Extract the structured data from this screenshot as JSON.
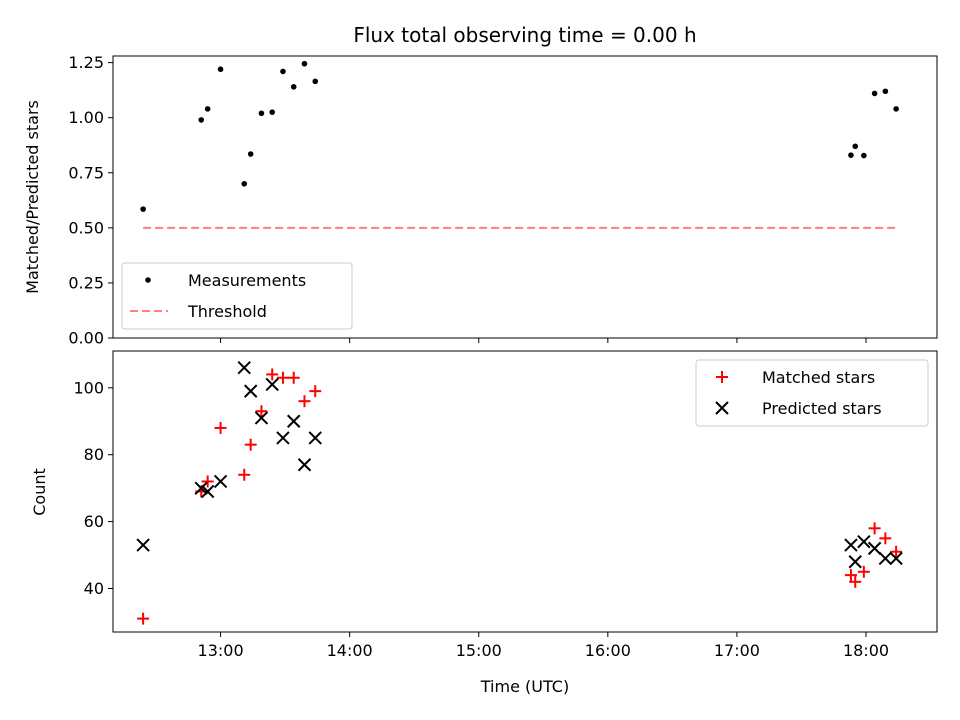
{
  "chart_data": [
    {
      "type": "scatter",
      "title": "Flux total observing time = 0.00 h",
      "xlabel": "",
      "ylabel": "Matched/Predicted stars",
      "xlim": [
        "12:10",
        "18:33"
      ],
      "ylim": [
        0,
        1.28
      ],
      "yticks": [
        "0.00",
        "0.25",
        "0.50",
        "0.75",
        "1.00",
        "1.25"
      ],
      "legend_position": "lower-left",
      "series": [
        {
          "name": "Measurements",
          "marker": "dot",
          "color": "#000000",
          "points": [
            [
              "12:24",
              0.585
            ],
            [
              "12:51",
              0.99
            ],
            [
              "12:54",
              1.04
            ],
            [
              "13:00",
              1.22
            ],
            [
              "13:11",
              0.7
            ],
            [
              "13:14",
              0.835
            ],
            [
              "13:19",
              1.02
            ],
            [
              "13:24",
              1.025
            ],
            [
              "13:29",
              1.21
            ],
            [
              "13:34",
              1.14
            ],
            [
              "13:39",
              1.245
            ],
            [
              "13:44",
              1.165
            ],
            [
              "17:53",
              0.83
            ],
            [
              "17:55",
              0.87
            ],
            [
              "17:59",
              0.828
            ],
            [
              "18:04",
              1.11
            ],
            [
              "18:09",
              1.12
            ],
            [
              "18:14",
              1.04
            ]
          ]
        },
        {
          "name": "Threshold",
          "marker": "dashed-line",
          "color": "#ff7f7f",
          "points": [
            [
              "12:24",
              0.5
            ],
            [
              "18:14",
              0.5
            ]
          ]
        }
      ]
    },
    {
      "type": "scatter",
      "title": "",
      "xlabel": "Time (UTC)",
      "ylabel": "Count",
      "xlim": [
        "12:10",
        "18:33"
      ],
      "ylim": [
        27,
        111
      ],
      "xticks": [
        "13:00",
        "14:00",
        "15:00",
        "16:00",
        "17:00",
        "18:00"
      ],
      "yticks": [
        "40",
        "60",
        "80",
        "100"
      ],
      "legend_position": "top-right",
      "series": [
        {
          "name": "Matched stars",
          "marker": "plus",
          "color": "#ff0000",
          "points": [
            [
              "12:24",
              31
            ],
            [
              "12:51",
              69
            ],
            [
              "12:54",
              72
            ],
            [
              "13:00",
              88
            ],
            [
              "13:11",
              74
            ],
            [
              "13:14",
              83
            ],
            [
              "13:19",
              93
            ],
            [
              "13:24",
              104
            ],
            [
              "13:29",
              103
            ],
            [
              "13:34",
              103
            ],
            [
              "13:39",
              96
            ],
            [
              "13:44",
              99
            ],
            [
              "17:53",
              44
            ],
            [
              "17:55",
              42
            ],
            [
              "17:59",
              45
            ],
            [
              "18:04",
              58
            ],
            [
              "18:09",
              55
            ],
            [
              "18:14",
              51
            ]
          ]
        },
        {
          "name": "Predicted stars",
          "marker": "x",
          "color": "#000000",
          "points": [
            [
              "12:24",
              53
            ],
            [
              "12:51",
              70
            ],
            [
              "12:54",
              69
            ],
            [
              "13:00",
              72
            ],
            [
              "13:11",
              106
            ],
            [
              "13:14",
              99
            ],
            [
              "13:19",
              91
            ],
            [
              "13:24",
              101
            ],
            [
              "13:29",
              85
            ],
            [
              "13:34",
              90
            ],
            [
              "13:39",
              77
            ],
            [
              "13:44",
              85
            ],
            [
              "17:53",
              53
            ],
            [
              "17:55",
              48
            ],
            [
              "17:59",
              54
            ],
            [
              "18:04",
              52
            ],
            [
              "18:09",
              49
            ],
            [
              "18:14",
              49
            ]
          ]
        }
      ]
    }
  ]
}
